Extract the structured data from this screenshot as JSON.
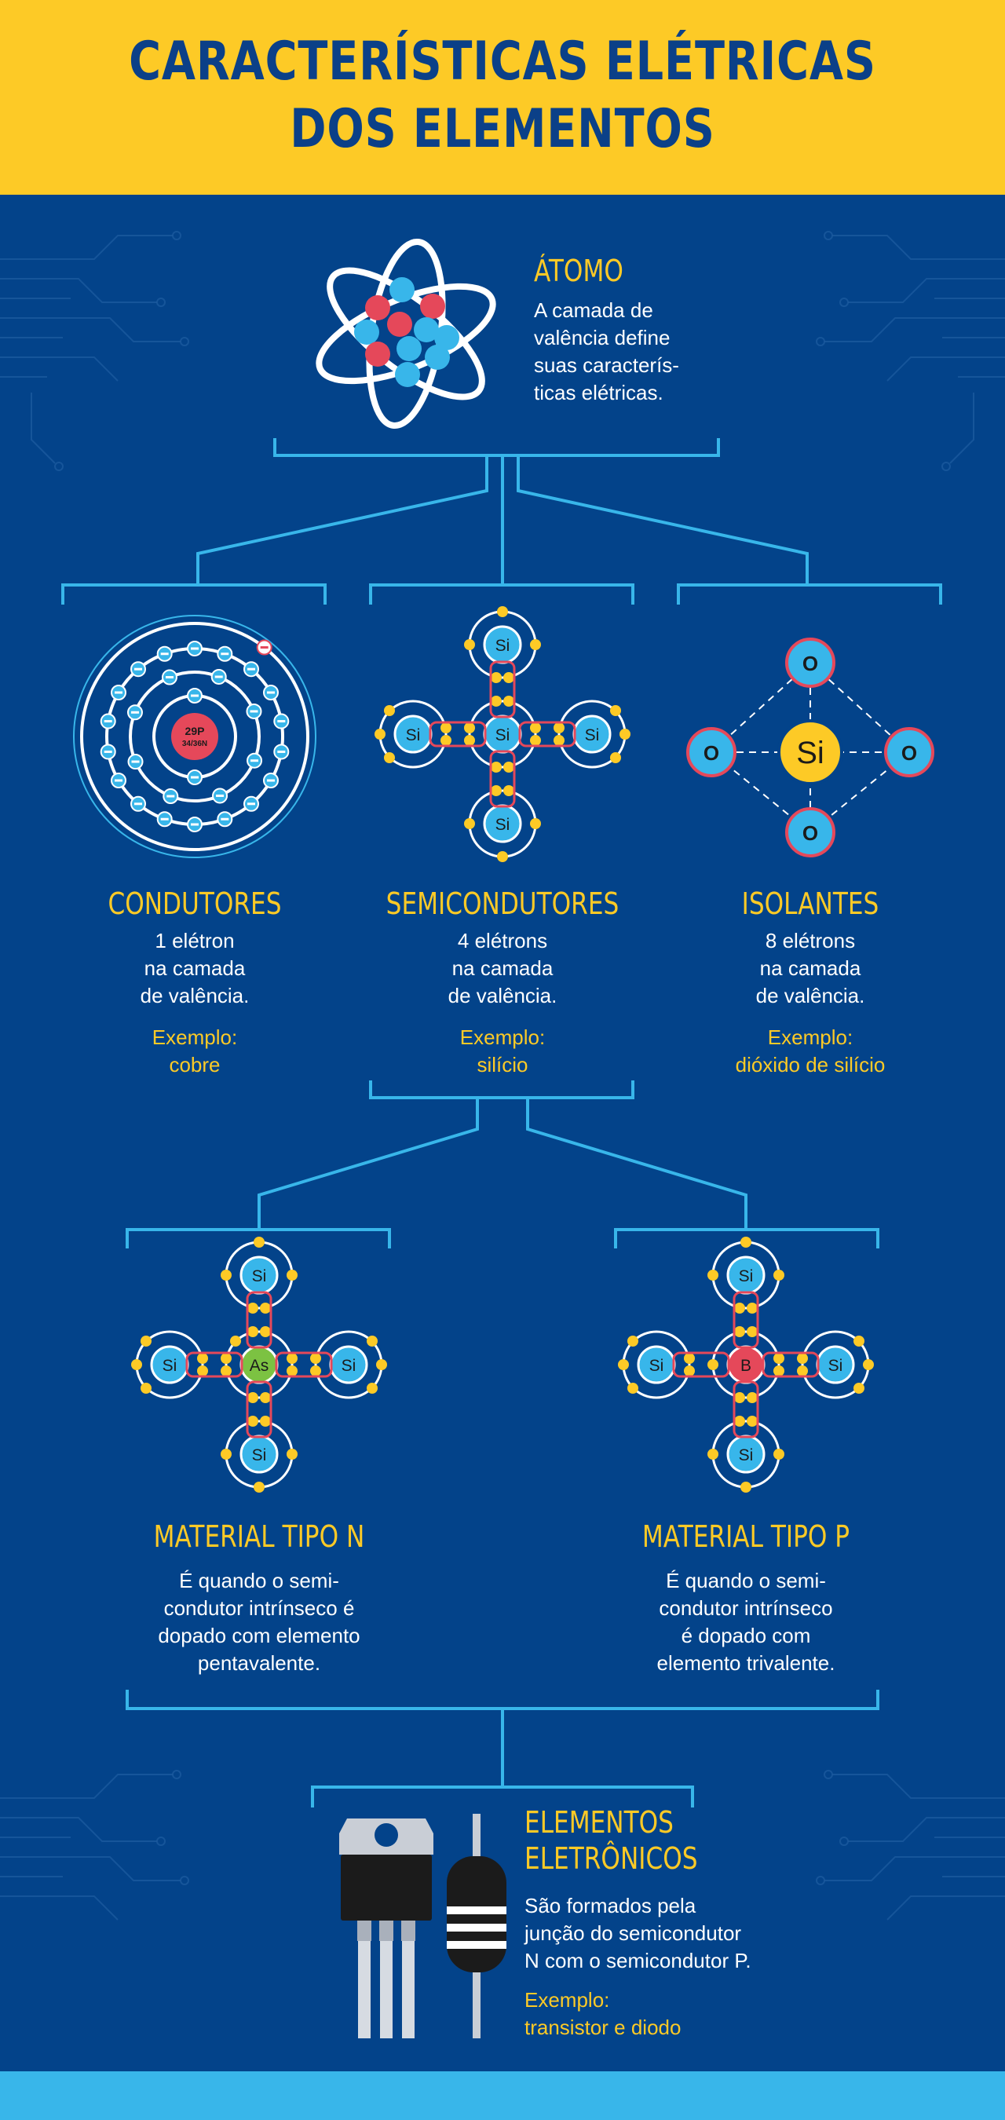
{
  "title": {
    "line1": "CARACTERÍSTICAS ELÉTRICAS",
    "line2": "DOS ELEMENTOS"
  },
  "atom": {
    "heading": "ÁTOMO",
    "text": [
      "A camada de",
      "valência define",
      "suas caracterís-",
      "ticas elétricas."
    ]
  },
  "conductors": {
    "heading": "CONDUTORES",
    "text": [
      "1 elétron",
      "na camada",
      "de valência."
    ],
    "example_label": "Exemplo:",
    "example": "cobre",
    "nucleus_p": "29P",
    "nucleus_n": "34/36N"
  },
  "semiconductors": {
    "heading": "SEMICONDUTORES",
    "text": [
      "4 elétrons",
      "na camada",
      "de valência."
    ],
    "example_label": "Exemplo:",
    "example": "silício",
    "atom_label": "Si"
  },
  "insulators": {
    "heading": "ISOLANTES",
    "text": [
      "8 elétrons",
      "na camada",
      "de valência."
    ],
    "example_label": "Exemplo:",
    "example": "dióxido de silício",
    "center_label": "Si",
    "outer_label": "O"
  },
  "type_n": {
    "heading": "MATERIAL TIPO N",
    "text": [
      "É quando o semi-",
      "condutor intrínseco é",
      "dopado com elemento",
      "pentavalente."
    ],
    "dopant_label": "As",
    "atom_label": "Si"
  },
  "type_p": {
    "heading": "MATERIAL TIPO P",
    "text": [
      "É quando o semi-",
      "condutor intrínseco",
      "é dopado com",
      "elemento trivalente."
    ],
    "dopant_label": "B",
    "atom_label": "Si"
  },
  "electronics": {
    "heading": [
      "ELEMENTOS",
      "ELETRÔNICOS"
    ],
    "text": [
      "São formados pela",
      "junção do semicondutor",
      "N com o semicondutor P."
    ],
    "example_label": "Exemplo:",
    "example": "transistor e diodo"
  },
  "colors": {
    "header_bg": "#fdca26",
    "page_bg": "#03438a",
    "accent_blue": "#38b6ea",
    "title_text": "#0b4088",
    "heading_yellow": "#fdca26",
    "proton_red": "#e5485a",
    "dopant_green": "#7cc242"
  }
}
